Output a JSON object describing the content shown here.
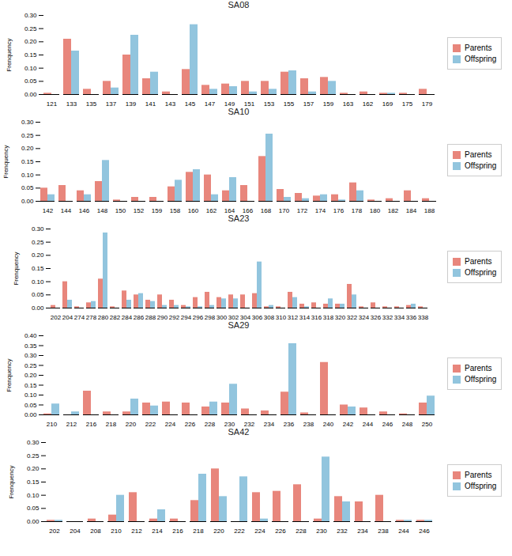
{
  "chart_data": [
    {
      "type": "bar",
      "title": "SA08",
      "ylabel": "Frenquency",
      "legend": "right",
      "ylim": [
        0,
        0.3
      ],
      "yticks": [
        {
          "value": 0,
          "label": "0.00"
        },
        {
          "value": 0.05,
          "label": "0.05"
        },
        {
          "value": 0.1,
          "label": "0.10"
        },
        {
          "value": 0.15,
          "label": "0.15"
        },
        {
          "value": 0.2,
          "label": "0.20"
        },
        {
          "value": 0.25,
          "label": "0.25"
        },
        {
          "value": 0.3,
          "label": "0.30"
        }
      ],
      "categories": [
        "121",
        "133",
        "135",
        "137",
        "139",
        "141",
        "143",
        "145",
        "147",
        "149",
        "151",
        "153",
        "155",
        "157",
        "159",
        "163",
        "162",
        "169",
        "175",
        "179"
      ],
      "series": [
        {
          "name": "Parents",
          "color": "#E8867C",
          "values": [
            0.005,
            0.21,
            0.02,
            0.05,
            0.15,
            0.06,
            0.01,
            0.095,
            0.035,
            0.04,
            0.05,
            0.05,
            0.085,
            0.06,
            0.065,
            0.005,
            0.01,
            0.005,
            0.005,
            0.02
          ]
        },
        {
          "name": "Offspring",
          "color": "#92C5DE",
          "values": [
            0.0,
            0.165,
            0.0,
            0.025,
            0.225,
            0.085,
            0.0,
            0.265,
            0.02,
            0.03,
            0.01,
            0.02,
            0.09,
            0.01,
            0.05,
            0.0,
            0.0,
            0.005,
            0.0,
            0.0
          ]
        }
      ]
    },
    {
      "type": "bar",
      "title": "SA10",
      "ylabel": "Frenquency",
      "legend": "right",
      "ylim": [
        0,
        0.3
      ],
      "yticks": [
        {
          "value": 0,
          "label": "0.00"
        },
        {
          "value": 0.05,
          "label": "0.05"
        },
        {
          "value": 0.1,
          "label": "0.10"
        },
        {
          "value": 0.15,
          "label": "0.15"
        },
        {
          "value": 0.2,
          "label": "0.20"
        },
        {
          "value": 0.25,
          "label": "0.25"
        },
        {
          "value": 0.3,
          "label": "0.30"
        }
      ],
      "categories": [
        "142",
        "144",
        "146",
        "148",
        "150",
        "152",
        "159",
        "158",
        "160",
        "162",
        "164",
        "166",
        "168",
        "170",
        "172",
        "174",
        "176",
        "178",
        "180",
        "182",
        "184",
        "188"
      ],
      "series": [
        {
          "name": "Parents",
          "color": "#E8867C",
          "values": [
            0.05,
            0.06,
            0.04,
            0.075,
            0.005,
            0.015,
            0.015,
            0.055,
            0.11,
            0.1,
            0.04,
            0.06,
            0.17,
            0.045,
            0.03,
            0.02,
            0.025,
            0.07,
            0.005,
            0.01,
            0.04,
            0.01
          ]
        },
        {
          "name": "Offspring",
          "color": "#92C5DE",
          "values": [
            0.025,
            0.0,
            0.025,
            0.155,
            0.0,
            0.0,
            0.0,
            0.08,
            0.12,
            0.025,
            0.09,
            0.0,
            0.255,
            0.015,
            0.01,
            0.025,
            0.005,
            0.04,
            0.0,
            0.0,
            0.0,
            0.0
          ]
        }
      ]
    },
    {
      "type": "bar",
      "title": "SA23",
      "ylabel": "Frenquency",
      "legend": "right",
      "ylim": [
        0,
        0.3
      ],
      "yticks": [
        {
          "value": 0,
          "label": "0.00"
        },
        {
          "value": 0.05,
          "label": "0.05"
        },
        {
          "value": 0.1,
          "label": "0.10"
        },
        {
          "value": 0.15,
          "label": "0.15"
        },
        {
          "value": 0.2,
          "label": "0.20"
        },
        {
          "value": 0.25,
          "label": "0.25"
        },
        {
          "value": 0.3,
          "label": "0.30"
        }
      ],
      "categories": [
        "202",
        "204",
        "274",
        "278",
        "280",
        "282",
        "284",
        "286",
        "288",
        "290",
        "292",
        "294",
        "296",
        "298",
        "300",
        "302",
        "304",
        "306",
        "308",
        "310",
        "312",
        "314",
        "316",
        "318",
        "320",
        "322",
        "324",
        "326",
        "332",
        "334",
        "336",
        "338"
      ],
      "series": [
        {
          "name": "Parents",
          "color": "#E8867C",
          "values": [
            0.01,
            0.1,
            0.005,
            0.02,
            0.11,
            0.005,
            0.065,
            0.05,
            0.03,
            0.05,
            0.03,
            0.01,
            0.04,
            0.06,
            0.04,
            0.05,
            0.05,
            0.055,
            0.005,
            0.005,
            0.06,
            0.015,
            0.02,
            0.015,
            0.015,
            0.09,
            0.005,
            0.02,
            0.005,
            0.005,
            0.01,
            0.005
          ]
        },
        {
          "name": "Offspring",
          "color": "#92C5DE",
          "values": [
            0.0,
            0.03,
            0.0,
            0.025,
            0.285,
            0.0,
            0.03,
            0.055,
            0.025,
            0.01,
            0.01,
            0.005,
            0.005,
            0.01,
            0.035,
            0.035,
            0.0,
            0.175,
            0.01,
            0.0,
            0.04,
            0.005,
            0.0,
            0.035,
            0.015,
            0.05,
            0.0,
            0.0,
            0.0,
            0.0,
            0.015,
            0.0
          ]
        }
      ]
    },
    {
      "type": "bar",
      "title": "SA29",
      "ylabel": "Frenquency",
      "legend": "right",
      "ylim": [
        0,
        0.4
      ],
      "yticks": [
        {
          "value": 0,
          "label": "0.00"
        },
        {
          "value": 0.05,
          "label": "0.05"
        },
        {
          "value": 0.1,
          "label": "0.10"
        },
        {
          "value": 0.15,
          "label": "0.15"
        },
        {
          "value": 0.2,
          "label": "0.20"
        },
        {
          "value": 0.25,
          "label": "0.25"
        },
        {
          "value": 0.3,
          "label": "0.30"
        },
        {
          "value": 0.35,
          "label": "0.35"
        },
        {
          "value": 0.4,
          "label": "0.40"
        }
      ],
      "categories": [
        "210",
        "212",
        "216",
        "218",
        "220",
        "222",
        "224",
        "226",
        "228",
        "230",
        "232",
        "234",
        "236",
        "238",
        "240",
        "242",
        "244",
        "246",
        "248",
        "250"
      ],
      "series": [
        {
          "name": "Parents",
          "color": "#E8867C",
          "values": [
            0.005,
            0.0,
            0.12,
            0.015,
            0.015,
            0.06,
            0.065,
            0.06,
            0.04,
            0.06,
            0.03,
            0.02,
            0.115,
            0.01,
            0.265,
            0.05,
            0.035,
            0.015,
            0.005,
            0.06
          ]
        },
        {
          "name": "Offspring",
          "color": "#92C5DE",
          "values": [
            0.055,
            0.015,
            0.0,
            0.0,
            0.08,
            0.045,
            0.0,
            0.0,
            0.065,
            0.155,
            0.0,
            0.0,
            0.36,
            0.0,
            0.0,
            0.04,
            0.0,
            0.0,
            0.0,
            0.095
          ]
        }
      ]
    },
    {
      "type": "bar",
      "title": "SA42",
      "ylabel": "Frenquency",
      "legend": "right",
      "ylim": [
        0,
        0.3
      ],
      "yticks": [
        {
          "value": 0,
          "label": "0.00"
        },
        {
          "value": 0.05,
          "label": "0.05"
        },
        {
          "value": 0.1,
          "label": "0.10"
        },
        {
          "value": 0.15,
          "label": "0.15"
        },
        {
          "value": 0.2,
          "label": "0.20"
        },
        {
          "value": 0.25,
          "label": "0.25"
        },
        {
          "value": 0.3,
          "label": "0.30"
        }
      ],
      "categories": [
        "202",
        "204",
        "208",
        "210",
        "212",
        "214",
        "216",
        "218",
        "220",
        "222",
        "224",
        "226",
        "228",
        "230",
        "232",
        "234",
        "238",
        "244",
        "246"
      ],
      "series": [
        {
          "name": "Parents",
          "color": "#E8867C",
          "values": [
            0.005,
            0.0,
            0.01,
            0.025,
            0.11,
            0.01,
            0.01,
            0.08,
            0.2,
            0.0,
            0.11,
            0.115,
            0.14,
            0.01,
            0.095,
            0.075,
            0.1,
            0.005,
            0.005
          ]
        },
        {
          "name": "Offspring",
          "color": "#92C5DE",
          "values": [
            0.005,
            0.0,
            0.0,
            0.1,
            0.0,
            0.045,
            0.0,
            0.18,
            0.095,
            0.17,
            0.01,
            0.0,
            0.0,
            0.245,
            0.075,
            0.0,
            0.0,
            0.005,
            0.005
          ]
        }
      ]
    }
  ]
}
